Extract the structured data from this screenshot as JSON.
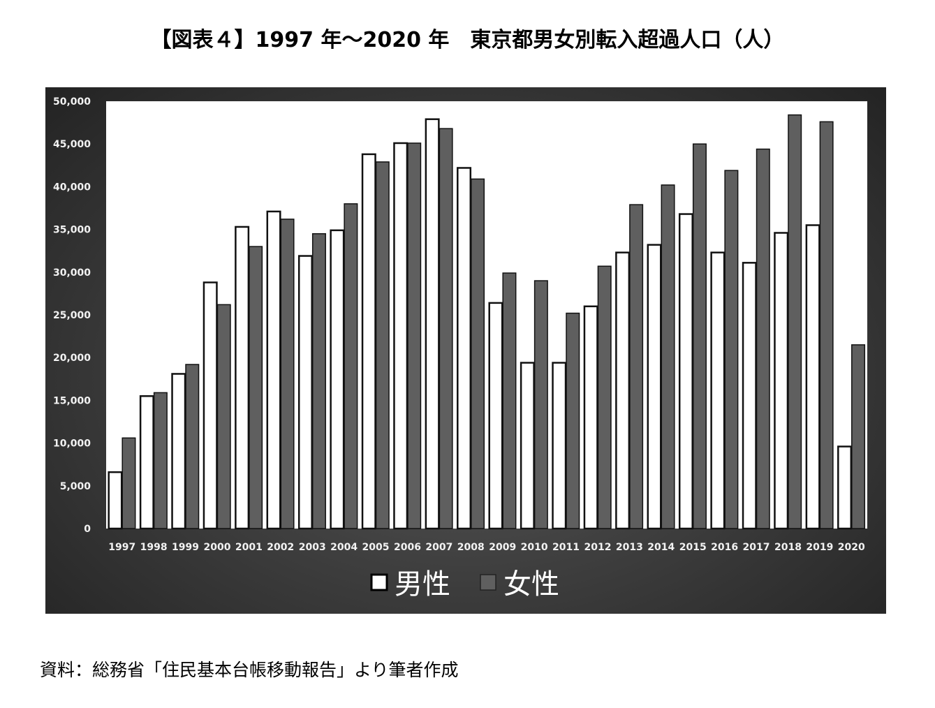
{
  "title": "【図表４】1997 年～2020 年　東京都男女別転入超過人口（人）",
  "note": "資料：総務省「住民基本台帳移動報告」より筆者作成",
  "colors": {
    "male": "#ffffff",
    "female": "#5f5f5f",
    "panel": "#3a3a3a",
    "plot_bg": "#ffffff"
  },
  "chart_data": {
    "type": "bar",
    "title": "【図表４】1997 年～2020 年　東京都男女別転入超過人口（人）",
    "xlabel": "",
    "ylabel": "",
    "ylim": [
      0,
      50000
    ],
    "yticks": [
      "0",
      "5,000",
      "10,000",
      "15,000",
      "20,000",
      "25,000",
      "30,000",
      "35,000",
      "40,000",
      "45,000",
      "50,000"
    ],
    "ytick_values": [
      0,
      5000,
      10000,
      15000,
      20000,
      25000,
      30000,
      35000,
      40000,
      45000,
      50000
    ],
    "categories": [
      "1997",
      "1998",
      "1999",
      "2000",
      "2001",
      "2002",
      "2003",
      "2004",
      "2005",
      "2006",
      "2007",
      "2008",
      "2009",
      "2010",
      "2011",
      "2012",
      "2013",
      "2014",
      "2015",
      "2016",
      "2017",
      "2018",
      "2019",
      "2020"
    ],
    "series": [
      {
        "name": "男性",
        "values": [
          6600,
          15500,
          18100,
          28800,
          35300,
          37100,
          31900,
          34900,
          43800,
          45100,
          47900,
          42200,
          26400,
          19400,
          19400,
          26000,
          32300,
          33200,
          36800,
          32300,
          31100,
          34600,
          35500,
          9600
        ]
      },
      {
        "name": "女性",
        "values": [
          10600,
          15900,
          19200,
          26200,
          33000,
          36200,
          34500,
          38000,
          42900,
          45100,
          46800,
          40900,
          29900,
          29000,
          25200,
          30700,
          37900,
          40200,
          45000,
          41900,
          44400,
          48400,
          47600,
          21500
        ]
      }
    ],
    "legend": {
      "position": "bottom-center",
      "entries": [
        "男性",
        "女性"
      ]
    },
    "grid": false
  }
}
